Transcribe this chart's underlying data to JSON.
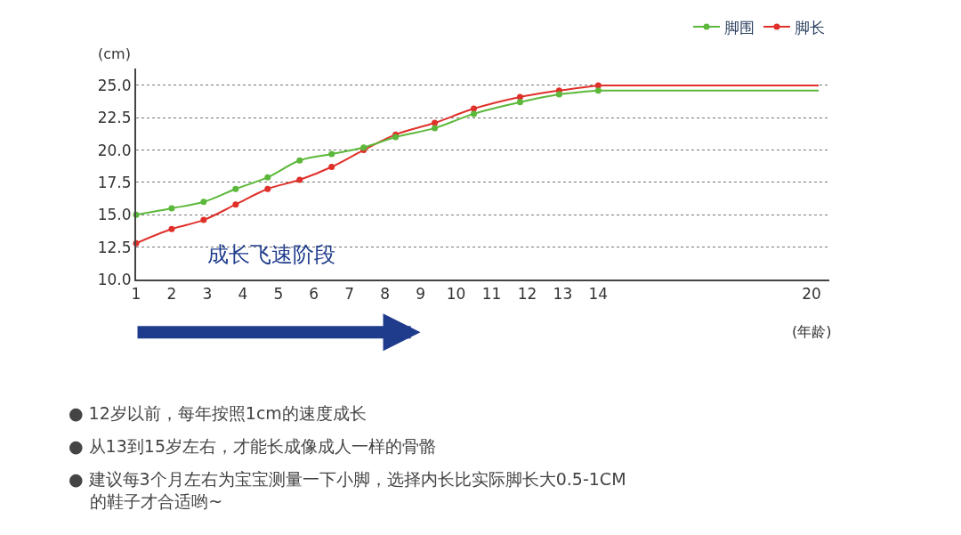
{
  "chart_data": {
    "type": "line",
    "ylabel": "(cm)",
    "xlabel": "(年龄)",
    "xlim": [
      1,
      20.5
    ],
    "xticks": [
      1,
      2,
      3,
      4,
      5,
      6,
      7,
      8,
      9,
      10,
      11,
      12,
      13,
      14,
      20
    ],
    "ylim": [
      10,
      26.3
    ],
    "yticks": [
      {
        "value": 10,
        "label": "10.0"
      },
      {
        "value": 12.5,
        "label": "12.5"
      },
      {
        "value": 15,
        "label": "15.0"
      },
      {
        "value": 17.5,
        "label": "17.5"
      },
      {
        "value": 20,
        "label": "20.0"
      },
      {
        "value": 22.5,
        "label": "22.5"
      },
      {
        "value": 25,
        "label": "25.0"
      }
    ],
    "grid": "y",
    "legend": "top right",
    "marker": "circle",
    "line_style": "solid",
    "series": [
      {
        "name": "脚围",
        "color": "#5cb83a",
        "x": [
          1,
          2,
          2.9,
          3.8,
          4.7,
          5.6,
          6.5,
          7.4,
          8.3,
          9.4,
          10.5,
          11.8,
          12.9,
          14
        ],
        "values": [
          15.0,
          15.5,
          16.0,
          17.0,
          17.9,
          19.2,
          19.7,
          20.2,
          21.0,
          21.7,
          22.8,
          23.7,
          24.3,
          24.6
        ]
      },
      {
        "name": "脚长",
        "color": "#e0302a",
        "x": [
          1,
          2,
          2.9,
          3.8,
          4.7,
          5.6,
          6.5,
          7.4,
          8.3,
          9.4,
          10.5,
          11.8,
          12.9,
          14
        ],
        "values": [
          12.8,
          13.9,
          14.6,
          15.8,
          17.0,
          17.7,
          18.7,
          20.0,
          21.2,
          22.1,
          23.2,
          24.1,
          24.6,
          25.0
        ]
      },
      {
        "color": "#5cb83a",
        "marker": "none",
        "x": [
          14,
          20.2
        ],
        "values": [
          24.6,
          24.6
        ]
      },
      {
        "color": "#e0302a",
        "marker": "none",
        "x": [
          14,
          20.2
        ],
        "values": [
          25.0,
          25.0
        ]
      }
    ],
    "annotations": [
      "成长飞速阶段",
      "● 12岁以前，每年按照1cm的速度成长",
      "● 从13到15岁左右，才能长成像成人一样的骨骼",
      "● 建议每3个月左右为宝宝测量一下小脚，选择内长比实际脚长大0.5-1CM\n    的鞋子才合适哟~"
    ]
  }
}
